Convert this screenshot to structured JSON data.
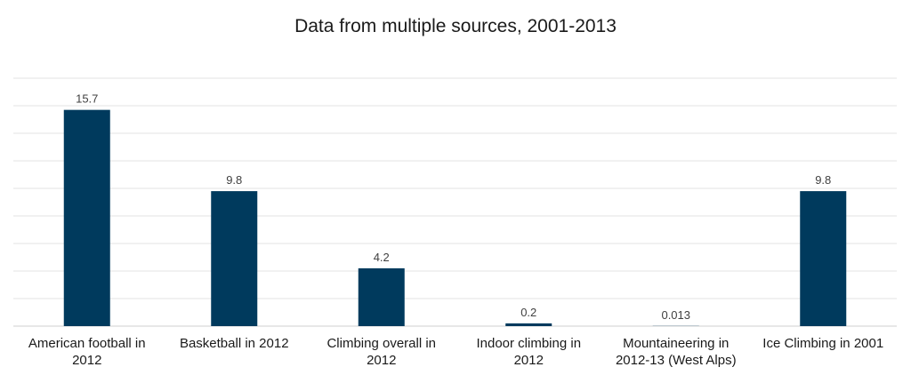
{
  "chart_data": {
    "type": "bar",
    "title": "Data from multiple sources, 2001-2013",
    "xlabel": "",
    "ylabel": "",
    "categories": [
      [
        "American football in",
        "2012"
      ],
      [
        "Basketball in 2012"
      ],
      [
        "Climbing overall in",
        "2012"
      ],
      [
        "Indoor climbing in",
        "2012"
      ],
      [
        "Mountaineering in",
        "2012-13 (West Alps)"
      ],
      [
        "Ice Climbing in 2001"
      ]
    ],
    "values": [
      15.7,
      9.8,
      4.2,
      0.2,
      0.013,
      9.8
    ],
    "value_labels": [
      "15.7",
      "9.8",
      "4.2",
      "0.2",
      "0.013",
      "9.8"
    ],
    "ylim": [
      0,
      18
    ],
    "grid": true,
    "legend": "none",
    "colors": {
      "bar": "#003a5d"
    }
  }
}
